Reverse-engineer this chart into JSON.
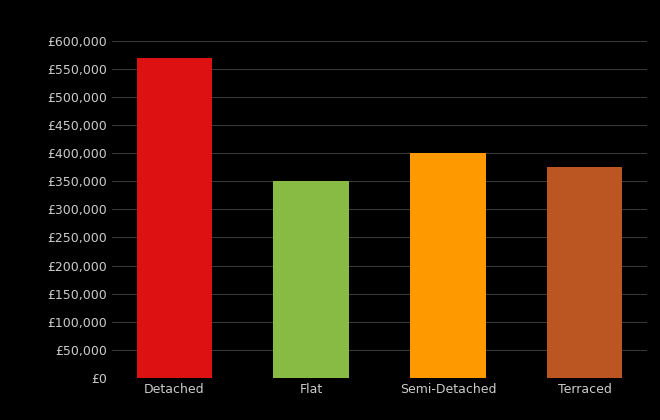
{
  "categories": [
    "Detached",
    "Flat",
    "Semi-Detached",
    "Terraced"
  ],
  "values": [
    570000,
    350000,
    400000,
    375000
  ],
  "bar_colors": [
    "#dd1111",
    "#88bb44",
    "#ff9900",
    "#bb5522"
  ],
  "background_color": "#000000",
  "text_color": "#cccccc",
  "grid_color": "#444444",
  "ylim": [
    0,
    650000
  ],
  "yticks": [
    0,
    50000,
    100000,
    150000,
    200000,
    250000,
    300000,
    350000,
    400000,
    450000,
    500000,
    550000,
    600000
  ],
  "ytick_labels": [
    "£0",
    "£50,000",
    "£100,000",
    "£150,000",
    "£200,000",
    "£250,000",
    "£300,000",
    "£350,000",
    "£400,000",
    "£450,000",
    "£500,000",
    "£550,000",
    "£600,000"
  ],
  "bar_width": 0.55,
  "figsize": [
    6.6,
    4.2
  ],
  "dpi": 100
}
